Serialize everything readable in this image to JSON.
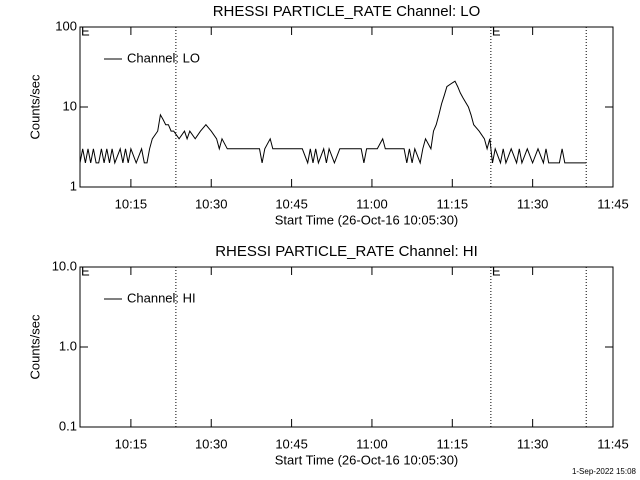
{
  "chart_data": [
    {
      "type": "line",
      "title": "RHESSI PARTICLE_RATE Channel: LO",
      "ylabel": "Counts/sec",
      "xlabel": "Start Time (26-Oct-16 10:05:30)",
      "log_y": true,
      "xlim": [
        605.5,
        705
      ],
      "ylim": [
        1,
        100
      ],
      "yticks": [
        1,
        10,
        100
      ],
      "xticks": [
        {
          "value": 615,
          "label": "10:15"
        },
        {
          "value": 630,
          "label": "10:30"
        },
        {
          "value": 645,
          "label": "10:45"
        },
        {
          "value": 660,
          "label": "11:00"
        },
        {
          "value": 675,
          "label": "11:15"
        },
        {
          "value": 690,
          "label": "11:30"
        },
        {
          "value": 705,
          "label": "11:45"
        }
      ],
      "vlines": [
        623.4,
        682.2,
        700
      ],
      "annotations": [
        {
          "text": "E",
          "x": 605.5
        },
        {
          "text": "E",
          "x": 682.2
        }
      ],
      "legend": "upper left",
      "series": [
        {
          "name": "Channel: LO",
          "color": "#000000",
          "x": [
            605.5,
            606,
            606.5,
            607,
            607.5,
            608,
            608.5,
            609,
            609.5,
            610,
            610.5,
            611,
            611.5,
            612,
            613,
            613.5,
            614,
            614.5,
            615,
            616,
            617,
            617.5,
            618,
            618.5,
            619,
            620,
            620.5,
            621,
            621.5,
            622,
            622.5,
            623,
            624,
            625,
            625.5,
            626,
            627,
            628,
            629,
            630,
            631,
            631.5,
            632,
            633,
            635,
            637,
            639,
            639.5,
            640,
            641,
            641.5,
            643,
            645,
            647,
            648,
            648.5,
            649,
            649.5,
            650,
            651,
            651.5,
            652,
            653,
            654,
            656,
            658,
            658.5,
            659,
            661,
            662,
            662.5,
            664,
            666,
            666.5,
            667,
            667.5,
            668,
            669,
            669.5,
            670,
            671,
            671.5,
            672,
            672.5,
            673,
            673.5,
            674,
            675,
            675.5,
            676,
            676.5,
            677,
            678,
            678.5,
            679,
            680,
            681,
            681.5,
            682,
            682.5,
            683,
            684,
            684.5,
            685,
            686,
            687,
            687.5,
            688,
            689,
            690,
            691,
            692,
            692.5,
            693,
            694,
            695,
            695.5,
            696,
            697,
            698,
            699,
            700
          ],
          "values": [
            2,
            3,
            2,
            3,
            2,
            3,
            2,
            2,
            3,
            2,
            3,
            2,
            3,
            2,
            3,
            2,
            3,
            2,
            3,
            2,
            3,
            2,
            2,
            3,
            4,
            5,
            8,
            7,
            6,
            6,
            5,
            5,
            4,
            5,
            4,
            5,
            4,
            5,
            6,
            5,
            4,
            3,
            4,
            3,
            3,
            3,
            3,
            2,
            3,
            4,
            3,
            3,
            3,
            3,
            2,
            3,
            2,
            3,
            2,
            3,
            2,
            3,
            2,
            3,
            3,
            3,
            2,
            3,
            3,
            4,
            3,
            3,
            3,
            2,
            3,
            2,
            3,
            2,
            3,
            4,
            3,
            5,
            6,
            8,
            11,
            14,
            18,
            20,
            21,
            18,
            15,
            13,
            10,
            8,
            6,
            5,
            4,
            3,
            4,
            2,
            3,
            2,
            3,
            2,
            3,
            2,
            3,
            2,
            3,
            2,
            3,
            2,
            3,
            2,
            2,
            2,
            3,
            2,
            2,
            2,
            2,
            2
          ]
        }
      ]
    },
    {
      "type": "line",
      "title": "RHESSI PARTICLE_RATE Channel: HI",
      "ylabel": "Counts/sec",
      "xlabel": "Start Time (26-Oct-16 10:05:30)",
      "log_y": true,
      "xlim": [
        605.5,
        705
      ],
      "ylim": [
        0.1,
        10
      ],
      "yticks": [
        0.1,
        {
          "value": 1,
          "label": "1.0"
        },
        {
          "value": 10,
          "label": "10.0"
        }
      ],
      "xticks": [
        {
          "value": 615,
          "label": "10:15"
        },
        {
          "value": 630,
          "label": "10:30"
        },
        {
          "value": 645,
          "label": "10:45"
        },
        {
          "value": 660,
          "label": "11:00"
        },
        {
          "value": 675,
          "label": "11:15"
        },
        {
          "value": 690,
          "label": "11:30"
        },
        {
          "value": 705,
          "label": "11:45"
        }
      ],
      "vlines": [
        623.4,
        682.2,
        700
      ],
      "annotations": [
        {
          "text": "E",
          "x": 605.5
        },
        {
          "text": "E",
          "x": 682.2
        }
      ],
      "legend": "upper left",
      "series": [
        {
          "name": "Channel: HI",
          "color": "#000000",
          "x": [],
          "values": []
        }
      ]
    }
  ],
  "footer": "1-Sep-2022 15:08"
}
